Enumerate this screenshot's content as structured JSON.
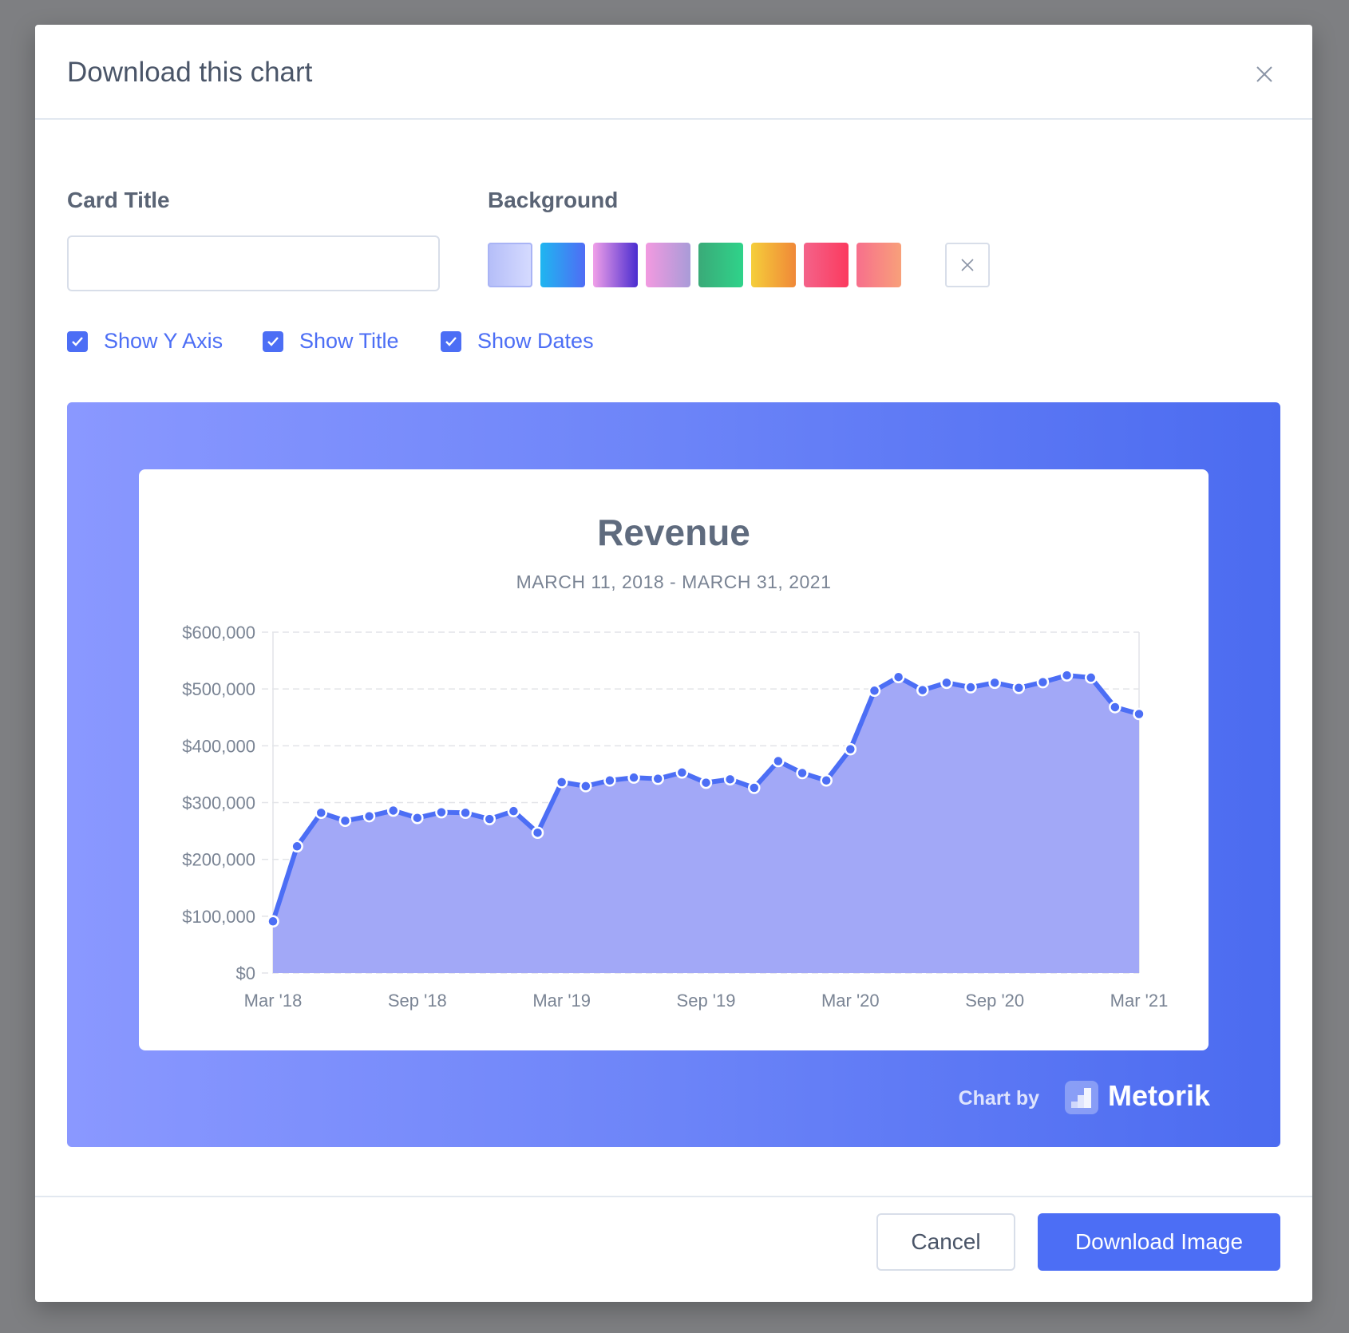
{
  "modal": {
    "title": "Download this chart",
    "close_icon": "close-icon"
  },
  "form": {
    "card_title_label": "Card Title",
    "card_title_value": "",
    "background_label": "Background",
    "swatches": [
      {
        "name": "lavender",
        "colors": [
          "#b4bdf8",
          "#d6dbff"
        ]
      },
      {
        "name": "blue",
        "colors": [
          "#1fb6f0",
          "#4f6cf5"
        ]
      },
      {
        "name": "purple",
        "colors": [
          "#f0a0e8",
          "#4a2cd0"
        ]
      },
      {
        "name": "pink-violet",
        "colors": [
          "#f29ae0",
          "#a99bd8"
        ]
      },
      {
        "name": "green",
        "colors": [
          "#3aaa78",
          "#2fd38a"
        ]
      },
      {
        "name": "orange",
        "colors": [
          "#f5ce3a",
          "#f08838"
        ]
      },
      {
        "name": "red",
        "colors": [
          "#f4638a",
          "#fb3a5e"
        ]
      },
      {
        "name": "coral",
        "colors": [
          "#f76f8c",
          "#f8a07a"
        ]
      }
    ],
    "checkboxes": [
      {
        "label": "Show Y Axis",
        "checked": true
      },
      {
        "label": "Show Title",
        "checked": true
      },
      {
        "label": "Show Dates",
        "checked": true
      }
    ]
  },
  "preview": {
    "title": "Revenue",
    "dates": "MARCH 11, 2018 - MARCH 31, 2021",
    "chart_by": "Chart by",
    "brand": "Metorik"
  },
  "chart_data": {
    "type": "area",
    "title": "Revenue",
    "ylim": [
      0,
      600000
    ],
    "yticks": [
      "$0",
      "$100,000",
      "$200,000",
      "$300,000",
      "$400,000",
      "$500,000",
      "$600,000"
    ],
    "xticks": [
      "Mar '18",
      "Sep '18",
      "Mar '19",
      "Sep '19",
      "Mar '20",
      "Sep '20",
      "Mar '21"
    ],
    "grid": true,
    "line_color": "#4c6ef5",
    "fill_color": "#a2a8f7",
    "values": [
      91000,
      223000,
      282000,
      268000,
      276000,
      286000,
      273000,
      283000,
      282000,
      271000,
      285000,
      247000,
      336000,
      329000,
      339000,
      344000,
      342000,
      353000,
      335000,
      341000,
      326000,
      373000,
      352000,
      339000,
      394000,
      497000,
      521000,
      498000,
      511000,
      503000,
      511000,
      502000,
      512000,
      524000,
      520000,
      468000,
      456000
    ]
  },
  "footer": {
    "cancel": "Cancel",
    "download": "Download Image"
  }
}
